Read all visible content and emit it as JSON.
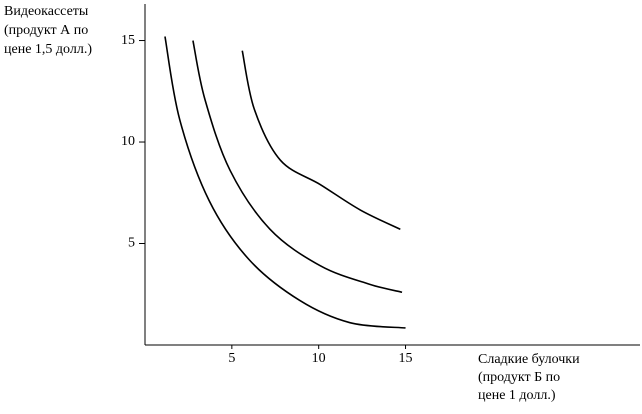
{
  "chart_data": {
    "type": "line",
    "ylabel": [
      "Видеокассеты",
      "(продукт А по",
      "цене 1,5 долл.)"
    ],
    "xlabel": [
      "Сладкие булочки",
      "(продукт Б по",
      "цене 1 долл.)"
    ],
    "series": [
      {
        "color": "#000000",
        "x": [
          1.15,
          2.0,
          3.7,
          6.0,
          8.9,
          11.8,
          15.0
        ],
        "values": [
          15.2,
          11.1,
          7.1,
          4.2,
          2.2,
          1.1,
          0.84
        ]
      },
      {
        "color": "#000000",
        "x": [
          2.76,
          3.45,
          4.9,
          7.2,
          10.1,
          12.9,
          14.8
        ],
        "values": [
          15.0,
          12.1,
          8.6,
          5.7,
          3.9,
          3.0,
          2.6
        ]
      },
      {
        "color": "#000000",
        "x": [
          5.6,
          6.3,
          7.8,
          10.1,
          12.4,
          14.7
        ],
        "values": [
          14.5,
          11.6,
          9.1,
          7.9,
          6.65,
          5.7
        ]
      }
    ],
    "xlim": [
      0,
      28.5
    ],
    "ylim": [
      0,
      16.8
    ],
    "xticks": [
      5,
      10,
      15
    ],
    "yticks": [
      5,
      10,
      15
    ],
    "grid": false
  }
}
